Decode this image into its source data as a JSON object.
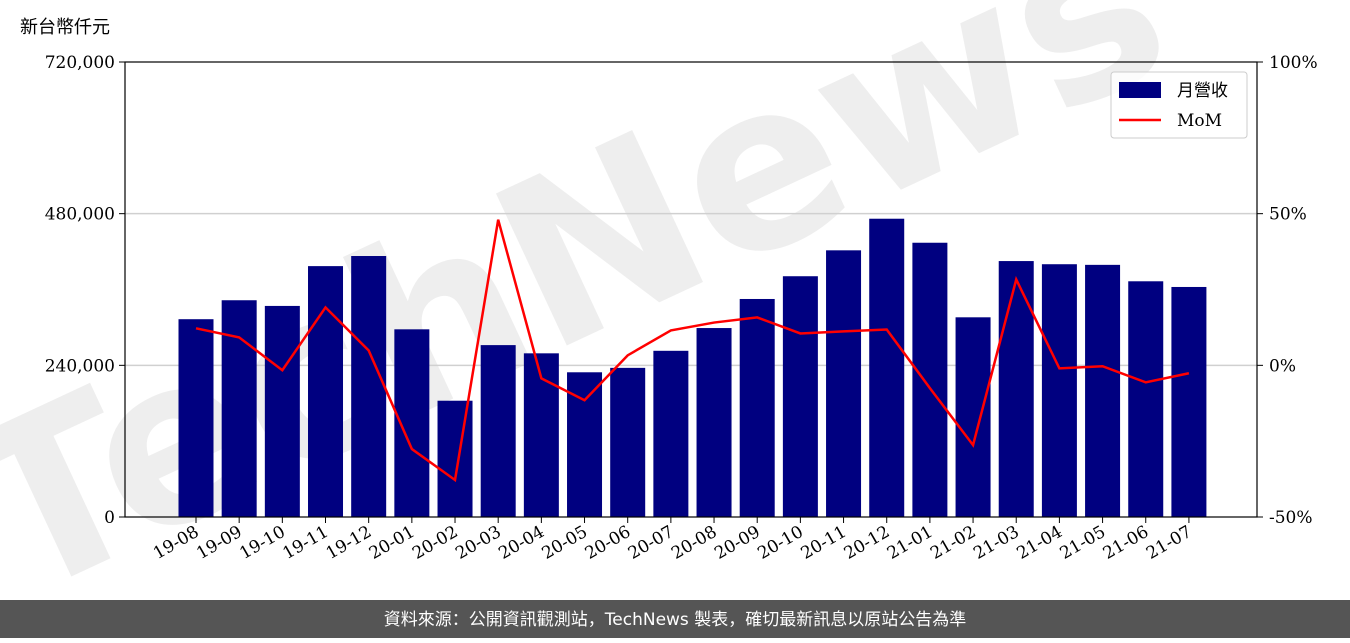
{
  "chart_data": {
    "type": "bar",
    "ylabel": "新台幣仟元",
    "watermark": "TechNews",
    "footer": "資料來源：公開資訊觀測站，TechNews 製表，確切最新訊息以原站公告為準",
    "categories": [
      "19-08",
      "19-09",
      "19-10",
      "19-11",
      "19-12",
      "20-01",
      "20-02",
      "20-03",
      "20-04",
      "20-05",
      "20-06",
      "20-07",
      "20-08",
      "20-09",
      "20-10",
      "20-11",
      "20-12",
      "21-01",
      "21-02",
      "21-03",
      "21-04",
      "21-05",
      "21-06",
      "21-07"
    ],
    "series": [
      {
        "name": "月營收",
        "type": "bar",
        "color": "#000080",
        "values": [
          313000,
          343000,
          334000,
          397000,
          413000,
          297000,
          184000,
          272000,
          259000,
          229000,
          236000,
          263000,
          299000,
          345000,
          381000,
          422000,
          472000,
          434000,
          316000,
          405000,
          400000,
          399000,
          373000,
          364000
        ]
      },
      {
        "name": "MoM",
        "type": "line",
        "axis": "y2",
        "color": "#ff0000",
        "values": [
          12.2,
          9.2,
          -1.6,
          19.1,
          4.9,
          -27.6,
          -37.8,
          48.0,
          -4.3,
          -11.5,
          3.3,
          11.5,
          14.1,
          15.8,
          10.5,
          11.2,
          11.8,
          -7.5,
          -26.3,
          28.3,
          -1.0,
          -0.3,
          -5.6,
          -2.6
        ]
      }
    ],
    "ylim": [
      0,
      720000
    ],
    "yticks": [
      0,
      {
        "value": 240000,
        "label": "240,000"
      },
      {
        "value": 480000,
        "label": "480,000"
      },
      {
        "value": 720000,
        "label": "720,000"
      }
    ],
    "y2lim": [
      -50,
      100
    ],
    "y2ticks": [
      {
        "value": -50,
        "label": "-50%"
      },
      {
        "value": 0,
        "label": "0%"
      },
      {
        "value": 50,
        "label": "50%"
      },
      {
        "value": 100,
        "label": "100%"
      }
    ],
    "grid": true,
    "legend": "upper right"
  }
}
